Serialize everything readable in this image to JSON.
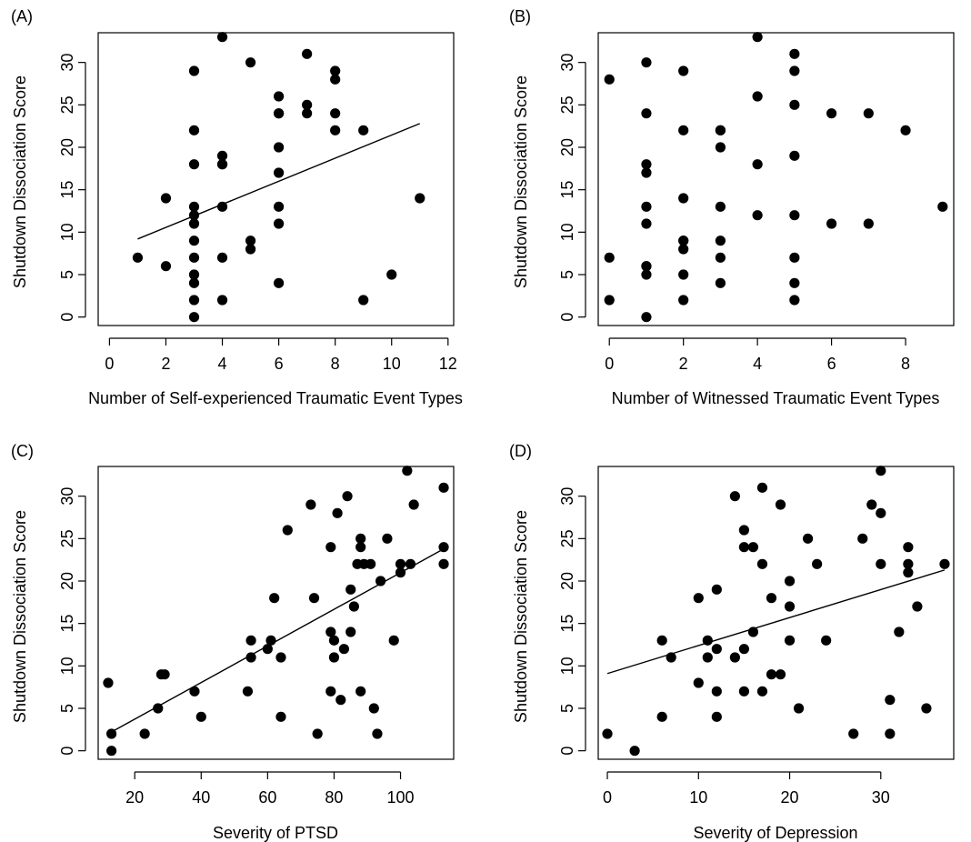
{
  "chart_data": [
    {
      "type": "scatter",
      "panel_label": "(A)",
      "title": "",
      "xlabel": "Number of Self-experienced Traumatic Event Types",
      "ylabel": "Shutdown Dissociation Score",
      "xlim": [
        -0.4,
        12.2
      ],
      "ylim": [
        -1,
        33.5
      ],
      "xticks": [
        0,
        2,
        4,
        6,
        8,
        10,
        12
      ],
      "yticks": [
        0,
        5,
        10,
        15,
        20,
        25,
        30
      ],
      "grid": false,
      "legend": "none",
      "trend_line": [
        [
          1,
          9.2
        ],
        [
          11,
          22.8
        ]
      ],
      "x": [
        1,
        2,
        2,
        3,
        3,
        3,
        3,
        3,
        3,
        3,
        3,
        3,
        3,
        3,
        3,
        4,
        4,
        4,
        4,
        4,
        4,
        4,
        5,
        5,
        5,
        6,
        6,
        6,
        6,
        6,
        6,
        6,
        6,
        7,
        7,
        7,
        8,
        8,
        8,
        8,
        9,
        9,
        10,
        11
      ],
      "y": [
        7,
        14,
        6,
        0,
        29,
        22,
        18,
        13,
        12,
        11,
        9,
        7,
        5,
        4,
        2,
        33,
        19,
        18,
        13,
        7,
        2,
        18,
        30,
        9,
        8,
        26,
        24,
        20,
        17,
        13,
        11,
        4,
        24,
        31,
        25,
        24,
        29,
        28,
        24,
        22,
        22,
        2,
        5,
        14
      ]
    },
    {
      "type": "scatter",
      "panel_label": "(B)",
      "title": "",
      "xlabel": "Number of Witnessed Traumatic Event Types",
      "ylabel": "Shutdown Dissociation Score",
      "xlim": [
        -0.3,
        9.3
      ],
      "ylim": [
        -1,
        33.5
      ],
      "xticks": [
        0,
        2,
        4,
        6,
        8
      ],
      "yticks": [
        0,
        5,
        10,
        15,
        20,
        25,
        30
      ],
      "grid": false,
      "legend": "none",
      "trend_line": null,
      "x": [
        0,
        0,
        0,
        1,
        1,
        1,
        1,
        1,
        1,
        1,
        1,
        1,
        1,
        2,
        2,
        2,
        2,
        2,
        2,
        2,
        2,
        3,
        3,
        3,
        3,
        3,
        3,
        3,
        4,
        4,
        4,
        4,
        5,
        5,
        5,
        5,
        5,
        5,
        5,
        5,
        6,
        6,
        7,
        7,
        8,
        9
      ],
      "y": [
        28,
        7,
        2,
        30,
        24,
        18,
        17,
        13,
        11,
        6,
        5,
        0,
        6,
        29,
        22,
        14,
        9,
        8,
        5,
        2,
        9,
        22,
        20,
        13,
        9,
        7,
        4,
        22,
        33,
        26,
        18,
        12,
        31,
        29,
        25,
        19,
        12,
        7,
        4,
        2,
        24,
        11,
        24,
        11,
        22,
        13
      ]
    },
    {
      "type": "scatter",
      "panel_label": "(C)",
      "title": "",
      "xlabel": "Severity of PTSD",
      "ylabel": "Shutdown Dissociation Score",
      "xlim": [
        9,
        116
      ],
      "ylim": [
        -1,
        33.5
      ],
      "xticks": [
        20,
        40,
        60,
        80,
        100
      ],
      "yticks": [
        0,
        5,
        10,
        15,
        20,
        25,
        30
      ],
      "grid": false,
      "legend": "none",
      "trend_line": [
        [
          12,
          2
        ],
        [
          114,
          24
        ]
      ],
      "x": [
        12,
        13,
        13,
        23,
        27,
        28,
        29,
        38,
        40,
        54,
        55,
        55,
        60,
        61,
        62,
        64,
        64,
        66,
        73,
        74,
        75,
        79,
        79,
        79,
        80,
        80,
        81,
        82,
        83,
        84,
        85,
        85,
        86,
        87,
        88,
        88,
        88,
        89,
        91,
        92,
        93,
        94,
        96,
        98,
        100,
        100,
        102,
        103,
        104,
        113,
        113,
        113
      ],
      "y": [
        8,
        2,
        0,
        2,
        5,
        9,
        9,
        7,
        4,
        7,
        13,
        11,
        12,
        13,
        18,
        11,
        4,
        26,
        29,
        18,
        2,
        24,
        14,
        7,
        11,
        13,
        28,
        6,
        12,
        30,
        19,
        14,
        17,
        22,
        25,
        24,
        7,
        22,
        22,
        5,
        2,
        20,
        25,
        13,
        22,
        21,
        33,
        22,
        29,
        31,
        24,
        22
      ]
    },
    {
      "type": "scatter",
      "panel_label": "(D)",
      "title": "",
      "xlabel": "Severity of Depression",
      "ylabel": "Shutdown Dissociation Score",
      "xlim": [
        -1,
        38
      ],
      "ylim": [
        -1,
        33.5
      ],
      "xticks": [
        0,
        10,
        20,
        30
      ],
      "yticks": [
        0,
        5,
        10,
        15,
        20,
        25,
        30
      ],
      "grid": false,
      "legend": "none",
      "trend_line": [
        [
          0,
          9.1
        ],
        [
          37,
          21.3
        ]
      ],
      "x": [
        0,
        3,
        6,
        6,
        7,
        10,
        10,
        11,
        11,
        12,
        12,
        12,
        12,
        14,
        14,
        15,
        15,
        15,
        15,
        16,
        16,
        17,
        17,
        17,
        18,
        18,
        19,
        19,
        20,
        20,
        20,
        21,
        22,
        23,
        24,
        27,
        28,
        29,
        30,
        30,
        30,
        31,
        31,
        32,
        33,
        33,
        33,
        34,
        35,
        37
      ],
      "y": [
        2,
        0,
        13,
        4,
        11,
        18,
        8,
        13,
        11,
        19,
        12,
        7,
        4,
        30,
        11,
        26,
        24,
        12,
        7,
        24,
        14,
        31,
        22,
        7,
        18,
        9,
        29,
        9,
        20,
        17,
        13,
        5,
        25,
        22,
        13,
        2,
        25,
        29,
        33,
        28,
        22,
        6,
        2,
        14,
        24,
        22,
        21,
        17,
        5,
        22
      ]
    }
  ]
}
